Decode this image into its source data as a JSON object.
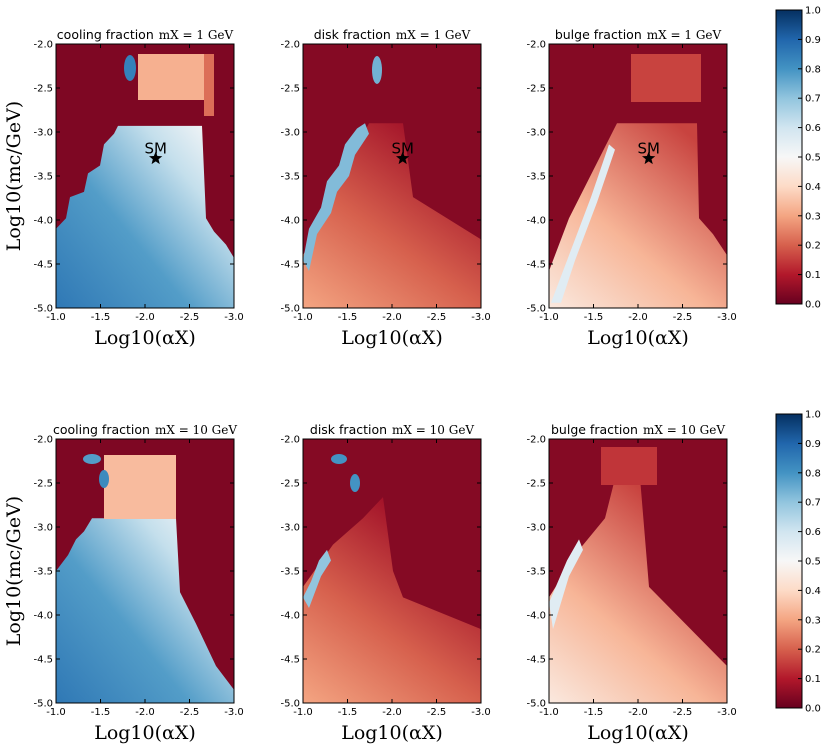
{
  "chart_data": [
    {
      "type": "heatmap",
      "row": 1,
      "quantity": "cooling",
      "title": "cooling fraction",
      "title_math": "m_X = 1 GeV",
      "title_math_text": "mX = 1 GeV",
      "xlabel": "Log10(αX)",
      "ylabel": "Log10(mc/GeV)",
      "xlim": [
        -1.0,
        -3.0
      ],
      "ylim": [
        -5.0,
        -2.0
      ],
      "xticks": [
        "-1.0",
        "-1.5",
        "-2.0",
        "-2.5",
        "-3.0"
      ],
      "yticks": [
        "-2.0",
        "-2.5",
        "-3.0",
        "-3.5",
        "-4.0",
        "-4.5",
        "-5.0"
      ],
      "annotation": {
        "text": "SM",
        "x": -2.12,
        "y": -3.3
      }
    },
    {
      "type": "heatmap",
      "row": 1,
      "quantity": "disk",
      "title": "disk fraction",
      "title_math": "m_X = 1 GeV",
      "title_math_text": "mX = 1 GeV",
      "xlabel": "Log10(αX)",
      "ylabel": "",
      "xlim": [
        -1.0,
        -3.0
      ],
      "ylim": [
        -5.0,
        -2.0
      ],
      "xticks": [
        "-1.0",
        "-1.5",
        "-2.0",
        "-2.5",
        "-3.0"
      ],
      "yticks": [
        "-2.0",
        "-2.5",
        "-3.0",
        "-3.5",
        "-4.0",
        "-4.5",
        "-5.0"
      ],
      "annotation": {
        "text": "SM",
        "x": -2.12,
        "y": -3.3
      }
    },
    {
      "type": "heatmap",
      "row": 1,
      "quantity": "bulge",
      "title": "bulge fraction",
      "title_math": "m_X = 1 GeV",
      "title_math_text": "mX = 1 GeV",
      "xlabel": "Log10(αX)",
      "ylabel": "",
      "xlim": [
        -1.0,
        -3.0
      ],
      "ylim": [
        -5.0,
        -2.0
      ],
      "xticks": [
        "-1.0",
        "-1.5",
        "-2.0",
        "-2.5",
        "-3.0"
      ],
      "yticks": [
        "-2.0",
        "-2.5",
        "-3.0",
        "-3.5",
        "-4.0",
        "-4.5",
        "-5.0"
      ],
      "annotation": {
        "text": "SM",
        "x": -2.12,
        "y": -3.3
      }
    },
    {
      "type": "heatmap",
      "row": 2,
      "quantity": "cooling",
      "title": "cooling fraction",
      "title_math": "m_X = 10 GeV",
      "title_math_text": "mX = 10 GeV",
      "xlabel": "Log10(αX)",
      "ylabel": "Log10(mc/GeV)",
      "xlim": [
        -1.0,
        -3.0
      ],
      "ylim": [
        -5.0,
        -2.0
      ],
      "xticks": [
        "-1.0",
        "-1.5",
        "-2.0",
        "-2.5",
        "-3.0"
      ],
      "yticks": [
        "-2.0",
        "-2.5",
        "-3.0",
        "-3.5",
        "-4.0",
        "-4.5",
        "-5.0"
      ]
    },
    {
      "type": "heatmap",
      "row": 2,
      "quantity": "disk",
      "title": "disk fraction",
      "title_math": "m_X = 10 GeV",
      "title_math_text": "mX = 10 GeV",
      "xlabel": "Log10(αX)",
      "ylabel": "",
      "xlim": [
        -1.0,
        -3.0
      ],
      "ylim": [
        -5.0,
        -2.0
      ],
      "xticks": [
        "-1.0",
        "-1.5",
        "-2.0",
        "-2.5",
        "-3.0"
      ],
      "yticks": [
        "-2.0",
        "-2.5",
        "-3.0",
        "-3.5",
        "-4.0",
        "-4.5",
        "-5.0"
      ]
    },
    {
      "type": "heatmap",
      "row": 2,
      "quantity": "bulge",
      "title": "bulge fraction",
      "title_math": "m_X = 10 GeV",
      "title_math_text": "mX = 10 GeV",
      "xlabel": "Log10(αX)",
      "ylabel": "",
      "xlim": [
        -1.0,
        -3.0
      ],
      "ylim": [
        -5.0,
        -2.0
      ],
      "xticks": [
        "-1.0",
        "-1.5",
        "-2.0",
        "-2.5",
        "-3.0"
      ],
      "yticks": [
        "-2.0",
        "-2.5",
        "-3.0",
        "-3.5",
        "-4.0",
        "-4.5",
        "-5.0"
      ]
    }
  ],
  "colorbar": {
    "range": [
      0.0,
      1.0
    ],
    "ticks": [
      "0.0",
      "0.1",
      "0.2",
      "0.3",
      "0.4",
      "0.5",
      "0.6",
      "0.7",
      "0.8",
      "0.9",
      "1.0"
    ],
    "colormap": [
      "#67001f",
      "#b2182b",
      "#d6604d",
      "#f4a582",
      "#fddbc7",
      "#f7f7f7",
      "#d1e5f0",
      "#92c5de",
      "#4393c3",
      "#2166ac",
      "#053061"
    ]
  }
}
